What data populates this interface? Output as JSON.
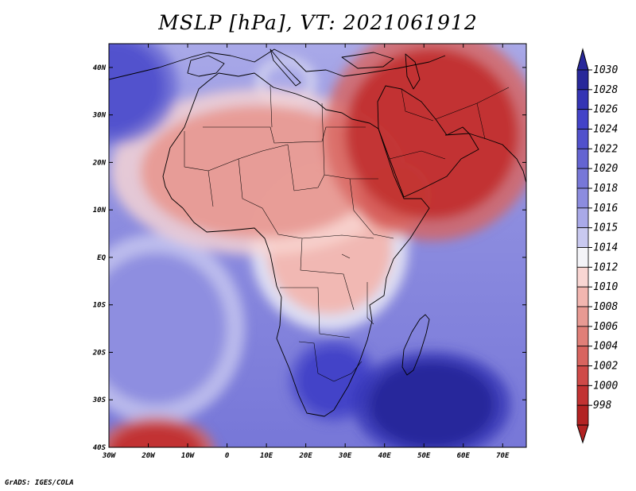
{
  "title": "MSLP [hPa], VT: 2021061912",
  "credit": "GrADS: IGES/COLA",
  "map": {
    "extent": {
      "lon_min": -30,
      "lon_max": 76,
      "lat_min": -40,
      "lat_max": 45
    },
    "x_ticks": [
      {
        "lon": -30,
        "label": "30W"
      },
      {
        "lon": -20,
        "label": "20W"
      },
      {
        "lon": -10,
        "label": "10W"
      },
      {
        "lon": 0,
        "label": "0"
      },
      {
        "lon": 10,
        "label": "10E"
      },
      {
        "lon": 20,
        "label": "20E"
      },
      {
        "lon": 30,
        "label": "30E"
      },
      {
        "lon": 40,
        "label": "40E"
      },
      {
        "lon": 50,
        "label": "50E"
      },
      {
        "lon": 60,
        "label": "60E"
      },
      {
        "lon": 70,
        "label": "70E"
      }
    ],
    "y_ticks": [
      {
        "lat": 40,
        "label": "40N"
      },
      {
        "lat": 30,
        "label": "30N"
      },
      {
        "lat": 20,
        "label": "20N"
      },
      {
        "lat": 10,
        "label": "10N"
      },
      {
        "lat": 0,
        "label": "EQ"
      },
      {
        "lat": -10,
        "label": "10S"
      },
      {
        "lat": -20,
        "label": "20S"
      },
      {
        "lat": -30,
        "label": "30S"
      },
      {
        "lat": -40,
        "label": "40S"
      }
    ],
    "pressure_regions": [
      {
        "name": "Arabian Peninsula and Middle East heat low",
        "center": [
          52,
          26
        ],
        "radius": [
          22,
          18
        ],
        "level": 1000
      },
      {
        "name": "Red Sea trough",
        "center": [
          42,
          13
        ],
        "radius": [
          8,
          6
        ],
        "level": 1001
      },
      {
        "name": "Sahara and Sahel thermal low",
        "center": [
          8,
          18
        ],
        "radius": [
          30,
          14
        ],
        "level": 1008
      },
      {
        "name": "East and central Africa",
        "center": [
          26,
          2
        ],
        "radius": [
          16,
          14
        ],
        "level": 1010
      },
      {
        "name": "South Atlantic low",
        "center": [
          -18,
          -41
        ],
        "radius": [
          12,
          6
        ],
        "level": 1000
      },
      {
        "name": "Azores high edge",
        "center": [
          -30,
          36
        ],
        "radius": [
          14,
          10
        ],
        "level": 1024
      },
      {
        "name": "Southern African high",
        "center": [
          27,
          -26
        ],
        "radius": [
          9,
          7
        ],
        "level": 1026
      },
      {
        "name": "Mascarene high",
        "center": [
          52,
          -31
        ],
        "radius": [
          16,
          9
        ],
        "level": 1030
      },
      {
        "name": "Central Mediterranean ridge",
        "center": [
          15,
          37
        ],
        "radius": [
          6,
          4
        ],
        "level": 1016
      },
      {
        "name": "Tropical South Atlantic",
        "center": [
          -18,
          -15
        ],
        "radius": [
          18,
          16
        ],
        "level": 1018
      }
    ]
  },
  "colorbar": {
    "levels": [
      "1030",
      "1028",
      "1026",
      "1024",
      "1022",
      "1020",
      "1018",
      "1016",
      "1015",
      "1014",
      "1012",
      "1010",
      "1008",
      "1006",
      "1004",
      "1002",
      "1000",
      "998"
    ],
    "colors": [
      "#28289a",
      "#3434b4",
      "#4343c8",
      "#5151cc",
      "#6464d2",
      "#7777d8",
      "#8c8cdf",
      "#a9a9e8",
      "#c9c9f0",
      "#f4f4f8",
      "#f9d6d3",
      "#f2b6b0",
      "#e89a93",
      "#e07f78",
      "#d8645f",
      "#cf4a48",
      "#c23232",
      "#b22222"
    ]
  }
}
